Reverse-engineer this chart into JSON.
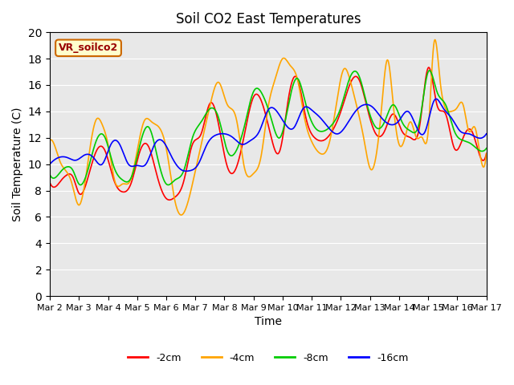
{
  "title": "Soil CO2 East Temperatures",
  "xlabel": "Time",
  "ylabel": "Soil Temperature (C)",
  "ylim": [
    0,
    20
  ],
  "bg_color": "#e8e8e8",
  "annotation_text": "VR_soilco2",
  "annotation_bg": "#ffffcc",
  "annotation_border": "#cc6600",
  "annotation_text_color": "#990000",
  "tick_labels": [
    "Mar 2",
    "Mar 3",
    "Mar 4",
    "Mar 5",
    "Mar 6",
    "Mar 7",
    "Mar 8",
    "Mar 9",
    "Mar 10",
    "Mar 11",
    "Mar 12",
    "Mar 13",
    "Mar 14",
    "Mar 15",
    "Mar 16",
    "Mar 17"
  ],
  "colors": {
    "-2cm": "#ff0000",
    "-4cm": "#ffa500",
    "-8cm": "#00cc00",
    "-16cm": "#0000ff"
  },
  "series_labels": [
    "-2cm",
    "-4cm",
    "-8cm",
    "-16cm"
  ],
  "t4_x": [
    0,
    0.15,
    0.35,
    0.55,
    0.75,
    1.0,
    1.2,
    1.4,
    1.6,
    1.8,
    2.0,
    2.25,
    2.5,
    2.75,
    3.0,
    3.25,
    3.5,
    3.75,
    4.0,
    4.3,
    4.6,
    4.9,
    5.2,
    5.5,
    5.8,
    6.1,
    6.4,
    6.7,
    7.0,
    7.25,
    7.5,
    7.75,
    8.0,
    8.25,
    8.5,
    8.75,
    9.0,
    9.3,
    9.6,
    9.9,
    10.1,
    10.3,
    10.5,
    10.8,
    11.0,
    11.2,
    11.4,
    11.6,
    11.8,
    12.0,
    12.2,
    12.4,
    12.6,
    12.8,
    13.0,
    13.2,
    13.4,
    13.6,
    13.8,
    14.0,
    14.2,
    14.4,
    14.6,
    14.8,
    15.0
  ],
  "t4_y": [
    11.8,
    11.5,
    10.2,
    9.5,
    8.6,
    6.9,
    8.5,
    11.5,
    13.4,
    13.0,
    11.5,
    8.6,
    8.5,
    8.7,
    11.0,
    13.3,
    13.2,
    12.8,
    11.2,
    7.2,
    6.3,
    8.5,
    11.5,
    14.4,
    16.2,
    14.5,
    13.5,
    9.6,
    9.3,
    10.5,
    14.3,
    16.5,
    18.0,
    17.5,
    16.5,
    13.5,
    11.7,
    10.8,
    11.6,
    15.3,
    17.2,
    16.5,
    14.8,
    11.8,
    9.7,
    10.5,
    14.3,
    17.9,
    14.5,
    11.5,
    12.0,
    13.2,
    12.0,
    12.0,
    12.5,
    19.2,
    16.5,
    14.2,
    14.0,
    14.3,
    14.5,
    12.5,
    12.8,
    10.5,
    10.8
  ],
  "t2_x": [
    0,
    0.2,
    0.4,
    0.6,
    0.8,
    1.0,
    1.3,
    1.6,
    1.9,
    2.2,
    2.5,
    2.8,
    3.1,
    3.4,
    3.7,
    4.0,
    4.3,
    4.6,
    4.9,
    5.2,
    5.5,
    5.8,
    6.1,
    6.4,
    6.7,
    7.0,
    7.3,
    7.6,
    7.9,
    8.2,
    8.5,
    8.8,
    9.1,
    9.4,
    9.7,
    10.0,
    10.3,
    10.6,
    10.9,
    11.2,
    11.5,
    11.8,
    12.1,
    12.4,
    12.7,
    13.0,
    13.3,
    13.6,
    13.9,
    14.2,
    14.5,
    14.8,
    15.0
  ],
  "t2_y": [
    8.6,
    8.3,
    8.8,
    9.2,
    9.0,
    7.8,
    8.9,
    11.0,
    11.0,
    8.8,
    7.9,
    8.6,
    11.0,
    11.3,
    9.0,
    7.4,
    7.5,
    8.7,
    11.5,
    12.3,
    14.6,
    13.0,
    9.8,
    9.7,
    12.4,
    15.1,
    14.6,
    12.1,
    11.0,
    15.0,
    16.5,
    13.5,
    12.0,
    11.8,
    12.5,
    14.0,
    16.0,
    16.5,
    14.3,
    12.3,
    12.5,
    13.8,
    12.5,
    12.0,
    12.8,
    17.3,
    14.5,
    13.8,
    11.2,
    12.0,
    12.5,
    10.5,
    10.8
  ],
  "t8_x": [
    0,
    0.2,
    0.4,
    0.6,
    0.8,
    1.0,
    1.3,
    1.6,
    1.9,
    2.2,
    2.5,
    2.8,
    3.1,
    3.4,
    3.7,
    4.0,
    4.3,
    4.6,
    4.9,
    5.2,
    5.5,
    5.8,
    6.1,
    6.4,
    6.7,
    7.0,
    7.3,
    7.6,
    7.9,
    8.2,
    8.5,
    8.8,
    9.1,
    9.4,
    9.7,
    10.0,
    10.3,
    10.6,
    10.9,
    11.2,
    11.5,
    11.8,
    12.1,
    12.4,
    12.7,
    13.0,
    13.3,
    13.6,
    13.9,
    14.2,
    14.5,
    14.8,
    15.0
  ],
  "t8_y": [
    9.2,
    9.0,
    9.5,
    9.8,
    9.5,
    8.5,
    9.5,
    11.8,
    12.0,
    9.8,
    8.8,
    9.0,
    11.5,
    12.8,
    10.5,
    8.5,
    8.8,
    9.5,
    12.0,
    13.2,
    14.2,
    13.5,
    11.0,
    11.0,
    13.0,
    15.5,
    15.3,
    13.5,
    12.0,
    14.5,
    16.5,
    14.5,
    12.8,
    12.5,
    13.0,
    14.3,
    16.5,
    16.8,
    14.5,
    12.8,
    13.2,
    14.5,
    13.2,
    12.5,
    13.2,
    17.0,
    15.5,
    14.5,
    12.5,
    11.8,
    11.5,
    11.0,
    11.2
  ],
  "t16_x": [
    0,
    0.3,
    0.6,
    0.9,
    1.2,
    1.5,
    1.8,
    2.1,
    2.4,
    2.7,
    3.0,
    3.3,
    3.6,
    3.9,
    4.2,
    4.5,
    4.8,
    5.1,
    5.4,
    5.7,
    6.0,
    6.3,
    6.6,
    6.9,
    7.2,
    7.5,
    7.8,
    8.1,
    8.4,
    8.7,
    9.0,
    9.3,
    9.6,
    9.9,
    10.2,
    10.5,
    10.8,
    11.1,
    11.4,
    11.7,
    12.0,
    12.3,
    12.6,
    12.9,
    13.2,
    13.5,
    13.8,
    14.1,
    14.4,
    14.7,
    15.0
  ],
  "t16_y": [
    10.0,
    10.5,
    10.5,
    10.3,
    10.7,
    10.5,
    10.0,
    11.5,
    11.5,
    10.0,
    9.9,
    10.0,
    11.5,
    11.7,
    10.5,
    9.6,
    9.5,
    10.0,
    11.5,
    12.2,
    12.3,
    12.0,
    11.5,
    11.8,
    12.5,
    14.1,
    14.0,
    13.0,
    12.8,
    14.2,
    14.1,
    13.5,
    12.7,
    12.3,
    13.0,
    14.0,
    14.5,
    14.3,
    13.5,
    13.0,
    13.3,
    14.0,
    12.8,
    12.5,
    14.8,
    14.3,
    13.5,
    12.5,
    12.3,
    12.0,
    12.3
  ]
}
